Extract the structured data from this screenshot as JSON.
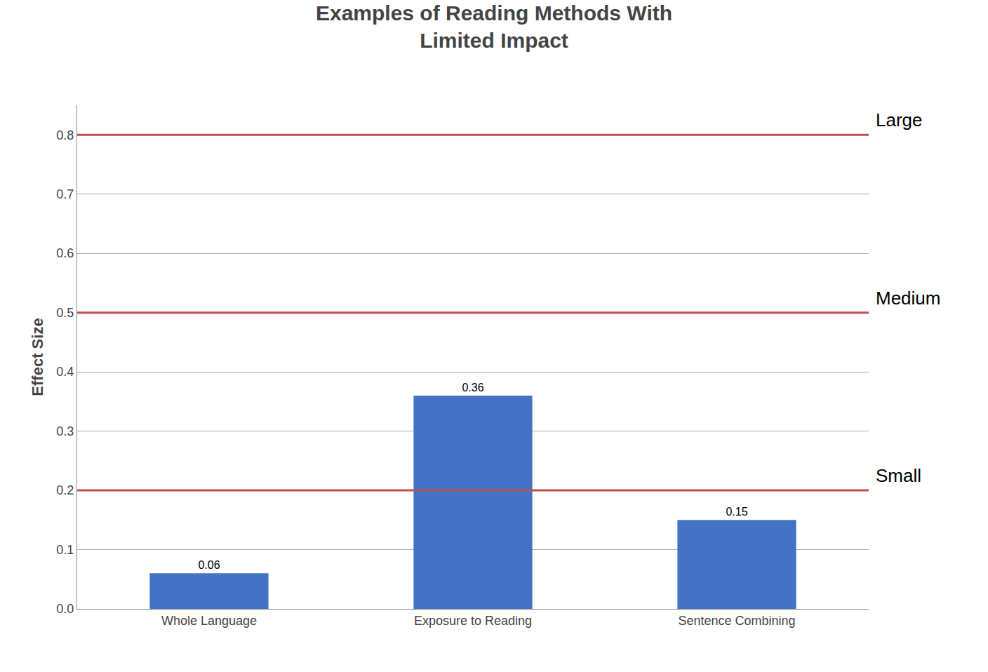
{
  "chart_data": {
    "type": "bar",
    "title": "Examples of Reading Methods With\nLimited Impact",
    "ylabel": "Effect Size",
    "categories": [
      "Whole Language",
      "Exposure to Reading",
      "Sentence Combining"
    ],
    "values": [
      0.06,
      0.36,
      0.15
    ],
    "value_labels": [
      "0.06",
      "0.36",
      "0.15"
    ],
    "data_labels": true,
    "color": "#4472C4",
    "ylim": [
      0,
      0.85
    ],
    "yticks": [
      {
        "value": 0,
        "label": "0.0"
      },
      0.1,
      0.2,
      0.3,
      0.4,
      0.5,
      0.6,
      0.7,
      0.8
    ],
    "hlines": [
      {
        "y": 0.8,
        "label": "Large",
        "color": "#C0504D"
      },
      {
        "y": 0.5,
        "label": "Medium",
        "color": "#C0504D"
      },
      {
        "y": 0.2,
        "label": "Small",
        "color": "#C0504D"
      }
    ],
    "grid": true
  }
}
